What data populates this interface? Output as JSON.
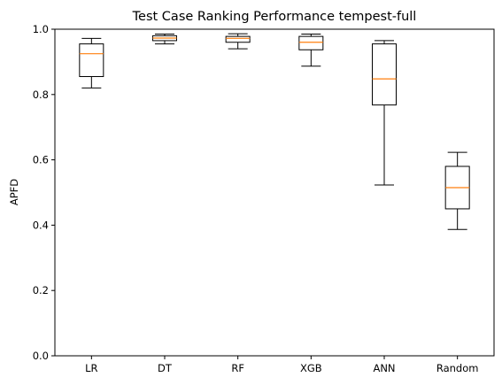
{
  "chart_data": {
    "type": "box",
    "title": "Test Case Ranking Performance tempest-full",
    "xlabel": "",
    "ylabel": "APFD",
    "ylim": [
      0.0,
      1.0
    ],
    "yticks": [
      "0.0",
      "0.2",
      "0.4",
      "0.6",
      "0.8",
      "1.0"
    ],
    "categories": [
      "LR",
      "DT",
      "RF",
      "XGB",
      "ANN",
      "Random"
    ],
    "boxes": [
      {
        "label": "LR",
        "whisker_low": 0.82,
        "q1": 0.855,
        "median": 0.925,
        "q3": 0.955,
        "whisker_high": 0.972
      },
      {
        "label": "DT",
        "whisker_low": 0.955,
        "q1": 0.965,
        "median": 0.973,
        "q3": 0.98,
        "whisker_high": 0.985
      },
      {
        "label": "RF",
        "whisker_low": 0.94,
        "q1": 0.96,
        "median": 0.972,
        "q3": 0.978,
        "whisker_high": 0.986
      },
      {
        "label": "XGB",
        "whisker_low": 0.887,
        "q1": 0.937,
        "median": 0.96,
        "q3": 0.978,
        "whisker_high": 0.985
      },
      {
        "label": "ANN",
        "whisker_low": 0.523,
        "q1": 0.768,
        "median": 0.848,
        "q3": 0.955,
        "whisker_high": 0.965
      },
      {
        "label": "Random",
        "whisker_low": 0.387,
        "q1": 0.45,
        "median": 0.515,
        "q3": 0.58,
        "whisker_high": 0.623
      }
    ],
    "grid": false,
    "colors": {
      "box": "#000000",
      "median": "#ff7f0e",
      "axes": "#000000"
    }
  }
}
